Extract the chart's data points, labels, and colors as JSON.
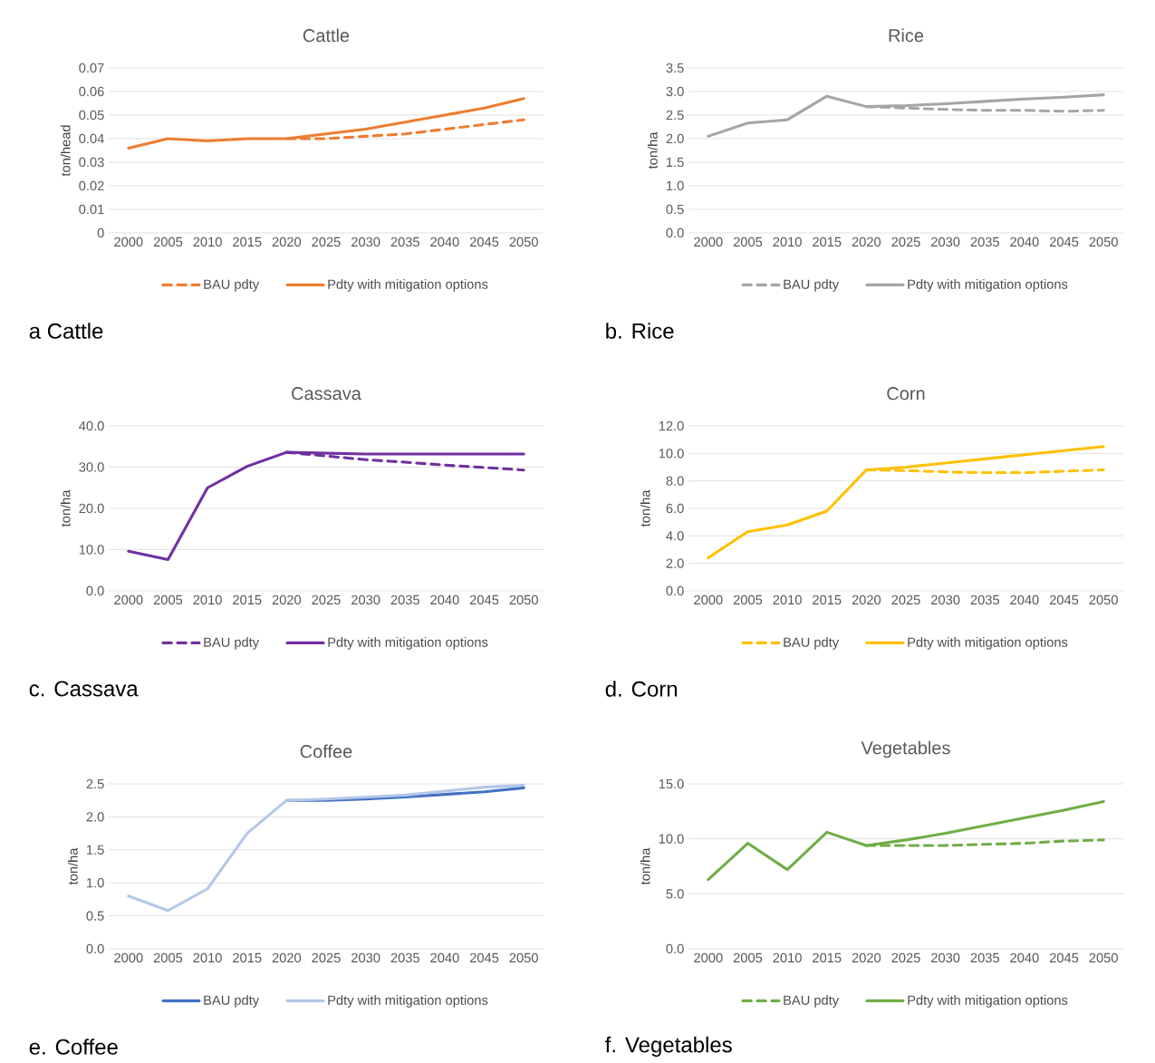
{
  "chart_data": [
    {
      "type": "line",
      "title": "Cattle",
      "ylabel": "ton/head",
      "annotations": [
        "a Cattle"
      ],
      "categories": [
        "2000",
        "2005",
        "2010",
        "2015",
        "2020",
        "2025",
        "2030",
        "2035",
        "2040",
        "2045",
        "2050"
      ],
      "ylim": [
        0,
        0.07
      ],
      "yticks": [
        0,
        0.01,
        0.02,
        0.03,
        0.04,
        0.05,
        0.06,
        0.07
      ],
      "grid": "y",
      "legend": "bottom",
      "series": [
        {
          "name": "BAU pdty",
          "color": "#ed7d31",
          "line_style": "dashed",
          "values": [
            null,
            null,
            null,
            null,
            0.04,
            0.04,
            0.041,
            0.042,
            0.044,
            0.046,
            0.048
          ]
        },
        {
          "name": "Pdty with mitigation options",
          "color": "#ed7d31",
          "line_style": "solid",
          "values": [
            0.036,
            0.04,
            0.039,
            0.04,
            0.04,
            0.042,
            0.044,
            0.047,
            0.05,
            0.053,
            0.057
          ]
        }
      ]
    },
    {
      "type": "line",
      "title": "Rice",
      "ylabel": "ton/ha",
      "annotations": [
        "b. Rice"
      ],
      "categories": [
        "2000",
        "2005",
        "2010",
        "2015",
        "2020",
        "2025",
        "2030",
        "2035",
        "2040",
        "2045",
        "2050"
      ],
      "ylim": [
        0,
        3.5
      ],
      "yticks": [
        {
          "value": 0,
          "label": "0.0"
        },
        0.5,
        {
          "value": 1,
          "label": "1.0"
        },
        1.5,
        {
          "value": 2,
          "label": "2.0"
        },
        2.5,
        {
          "value": 3,
          "label": "3.0"
        },
        3.5
      ],
      "grid": "y",
      "legend": "bottom",
      "series": [
        {
          "name": "BAU pdty",
          "color": "#a5a5a5",
          "line_style": "dashed",
          "values": [
            null,
            null,
            null,
            null,
            2.68,
            2.65,
            2.62,
            2.6,
            2.6,
            2.58,
            2.6
          ]
        },
        {
          "name": "Pdty with mitigation options",
          "color": "#a5a5a5",
          "line_style": "solid",
          "values": [
            2.05,
            2.33,
            2.4,
            2.9,
            2.68,
            2.7,
            2.74,
            2.79,
            2.84,
            2.88,
            2.93
          ]
        }
      ]
    },
    {
      "type": "line",
      "title": "Cassava",
      "ylabel": "ton/ha",
      "annotations": [
        "c. Cassava"
      ],
      "categories": [
        "2000",
        "2005",
        "2010",
        "2015",
        "2020",
        "2025",
        "2030",
        "2035",
        "2040",
        "2045",
        "2050"
      ],
      "ylim": [
        0,
        40
      ],
      "yticks": [
        {
          "value": 0,
          "label": "0.0"
        },
        {
          "value": 10,
          "label": "10.0"
        },
        {
          "value": 20,
          "label": "20.0"
        },
        {
          "value": 30,
          "label": "30.0"
        },
        {
          "value": 40,
          "label": "40.0"
        }
      ],
      "grid": "y",
      "legend": "bottom",
      "series": [
        {
          "name": "BAU pdty",
          "color": "#7030a0",
          "line_style": "dashed",
          "values": [
            null,
            null,
            null,
            null,
            33.6,
            32.7,
            31.8,
            31.2,
            30.5,
            29.9,
            29.3
          ]
        },
        {
          "name": "Pdty with mitigation options",
          "color": "#7030a0",
          "line_style": "solid",
          "values": [
            9.6,
            7.6,
            25.0,
            30.2,
            33.6,
            33.4,
            33.2,
            33.2,
            33.2,
            33.2,
            33.2
          ]
        }
      ]
    },
    {
      "type": "line",
      "title": "Corn",
      "ylabel": "ton/ha",
      "annotations": [
        "d. Corn"
      ],
      "categories": [
        "2000",
        "2005",
        "2010",
        "2015",
        "2020",
        "2025",
        "2030",
        "2035",
        "2040",
        "2045",
        "2050"
      ],
      "ylim": [
        0,
        12
      ],
      "yticks": [
        {
          "value": 0,
          "label": "0.0"
        },
        {
          "value": 2,
          "label": "2.0"
        },
        {
          "value": 4,
          "label": "4.0"
        },
        {
          "value": 6,
          "label": "6.0"
        },
        {
          "value": 8,
          "label": "8.0"
        },
        {
          "value": 10,
          "label": "10.0"
        },
        {
          "value": 12,
          "label": "12.0"
        }
      ],
      "grid": "y",
      "legend": "bottom",
      "series": [
        {
          "name": "BAU pdty",
          "color": "#ffc000",
          "line_style": "dashed",
          "values": [
            null,
            null,
            null,
            null,
            8.8,
            8.75,
            8.65,
            8.6,
            8.6,
            8.7,
            8.8
          ]
        },
        {
          "name": "Pdty with mitigation options",
          "color": "#ffc000",
          "line_style": "solid",
          "values": [
            2.4,
            4.3,
            4.8,
            5.8,
            8.8,
            9.0,
            9.3,
            9.6,
            9.9,
            10.2,
            10.5
          ]
        }
      ]
    },
    {
      "type": "line",
      "title": "Coffee",
      "ylabel": "ton/ha",
      "annotations": [
        "e. Coffee"
      ],
      "categories": [
        "2000",
        "2005",
        "2010",
        "2015",
        "2020",
        "2025",
        "2030",
        "2035",
        "2040",
        "2045",
        "2050"
      ],
      "ylim": [
        0,
        2.5
      ],
      "yticks": [
        {
          "value": 0,
          "label": "0.0"
        },
        0.5,
        {
          "value": 1,
          "label": "1.0"
        },
        1.5,
        {
          "value": 2,
          "label": "2.0"
        },
        2.5
      ],
      "grid": "y",
      "legend": "bottom",
      "series": [
        {
          "name": "BAU pdty",
          "color": "#4472c4",
          "line_style": "solid",
          "values": [
            null,
            null,
            null,
            null,
            2.25,
            2.25,
            2.27,
            2.3,
            2.34,
            2.38,
            2.44
          ]
        },
        {
          "name": "Pdty with mitigation options",
          "color": "#b4c7e7",
          "line_style": "solid",
          "values": [
            0.8,
            0.58,
            0.91,
            1.75,
            2.25,
            2.27,
            2.3,
            2.33,
            2.39,
            2.45,
            2.48
          ]
        }
      ]
    },
    {
      "type": "line",
      "title": "Vegetables",
      "ylabel": "ton/ha",
      "annotations": [
        "f. Vegetables"
      ],
      "categories": [
        "2000",
        "2005",
        "2010",
        "2015",
        "2020",
        "2025",
        "2030",
        "2035",
        "2040",
        "2045",
        "2050"
      ],
      "ylim": [
        0,
        15
      ],
      "yticks": [
        {
          "value": 0,
          "label": "0.0"
        },
        {
          "value": 5,
          "label": "5.0"
        },
        {
          "value": 10,
          "label": "10.0"
        },
        {
          "value": 15,
          "label": "15.0"
        }
      ],
      "grid": "y",
      "legend": "bottom",
      "series": [
        {
          "name": "BAU pdty",
          "color": "#70ad47",
          "line_style": "dashed",
          "values": [
            null,
            null,
            null,
            null,
            9.4,
            9.4,
            9.4,
            9.5,
            9.6,
            9.8,
            9.9
          ]
        },
        {
          "name": "Pdty with mitigation options",
          "color": "#70ad47",
          "line_style": "solid",
          "values": [
            6.3,
            9.6,
            7.2,
            10.6,
            9.4,
            9.9,
            10.5,
            11.2,
            11.9,
            12.6,
            13.4
          ]
        }
      ]
    }
  ]
}
